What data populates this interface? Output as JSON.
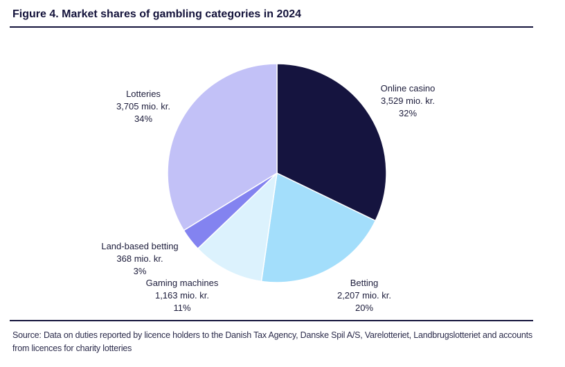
{
  "title": "Figure 4. Market shares of gambling categories in 2024",
  "source": "Source: Data on duties reported by licence holders to the Danish Tax Agency, Danske Spil A/S, Varelotteriet, Landbrugslotteriet and accounts from licences for charity lotteries",
  "chart_data": {
    "type": "pie",
    "title": "Figure 4. Market shares of gambling categories in 2024",
    "start_angle_deg": 0,
    "direction": "clockwise",
    "slices": [
      {
        "label": "Online casino",
        "value": 3529,
        "value_label": "3,529 mio. kr.",
        "percent_label": "32%",
        "color": "#15143f"
      },
      {
        "label": "Betting",
        "value": 2207,
        "value_label": "2,207 mio. kr.",
        "percent_label": "20%",
        "color": "#a3defb"
      },
      {
        "label": "Gaming machines",
        "value": 1163,
        "value_label": "1,163 mio. kr.",
        "percent_label": "11%",
        "color": "#dcf2fd"
      },
      {
        "label": "Land-based betting",
        "value": 368,
        "value_label": "368 mio. kr.",
        "percent_label": "3%",
        "color": "#8383f0"
      },
      {
        "label": "Lotteries",
        "value": 3705,
        "value_label": "3,705 mio. kr.",
        "percent_label": "34%",
        "color": "#c2c1f7"
      }
    ]
  }
}
